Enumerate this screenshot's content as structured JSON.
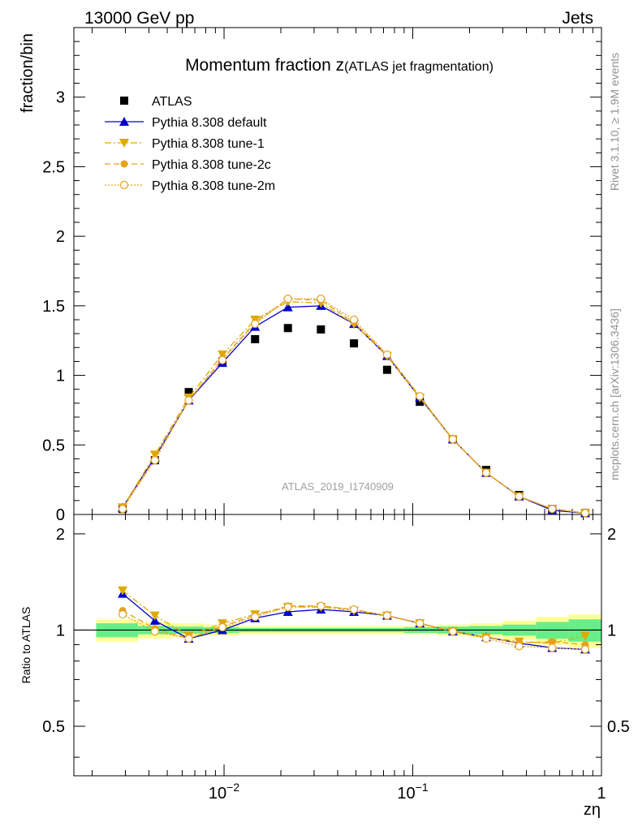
{
  "header": {
    "left": "13000 GeV pp",
    "right": "Jets"
  },
  "side_labels": {
    "rivet": "Rivet 3.1.10, ≥ 1.9M events",
    "mcplots": "mcplots.cern.ch [arXiv:1306.3436]"
  },
  "chart_data": {
    "type": "scatter",
    "title": "Momentum fraction z",
    "subtitle": "(ATLAS jet fragmentation)",
    "watermark": "ATLAS_2019_I1740909",
    "xscale": "log",
    "xlim": [
      0.0016,
      1
    ],
    "x_ticks": [
      {
        "value": 0.01,
        "base": "10",
        "exp": "−2"
      },
      {
        "value": 0.1,
        "base": "10",
        "exp": "−1"
      },
      {
        "value": 1,
        "base": "1",
        "exp": ""
      }
    ],
    "xlabel": "zη",
    "x": [
      0.0029,
      0.0043,
      0.0065,
      0.0098,
      0.0146,
      0.0218,
      0.0326,
      0.0488,
      0.0731,
      0.109,
      0.163,
      0.245,
      0.366,
      0.548,
      0.82
    ],
    "main": {
      "ylabel": "fraction/bin",
      "ylim": [
        0,
        3.5
      ],
      "yticks": [
        {
          "value": 0,
          "label": "0"
        },
        {
          "value": 0.5,
          "label": "0.5"
        },
        {
          "value": 1,
          "label": "1"
        },
        {
          "value": 1.5,
          "label": "1.5"
        },
        {
          "value": 2,
          "label": "2"
        },
        {
          "value": 2.5,
          "label": "2.5"
        },
        {
          "value": 3,
          "label": "3"
        }
      ],
      "legend_position": "top-left",
      "series": [
        {
          "name": "ATLAS",
          "style": "data",
          "color": "#000000",
          "values": [
            0.04,
            0.39,
            0.88,
            1.1,
            1.26,
            1.34,
            1.33,
            1.23,
            1.04,
            0.81,
            0.54,
            0.32,
            0.14,
            0.04,
            0.01
          ]
        },
        {
          "name": "Pythia 8.308 default",
          "style": "solid",
          "marker": "triangle-up",
          "color": "#0000cc",
          "values": [
            0.05,
            0.41,
            0.82,
            1.09,
            1.35,
            1.49,
            1.5,
            1.37,
            1.14,
            0.84,
            0.54,
            0.3,
            0.13,
            0.03,
            0.01
          ]
        },
        {
          "name": "Pythia 8.308 tune-1",
          "style": "dashdot",
          "marker": "triangle-down",
          "color": "#ddaa00",
          "values": [
            0.05,
            0.43,
            0.84,
            1.15,
            1.4,
            1.53,
            1.52,
            1.37,
            1.14,
            0.84,
            0.54,
            0.3,
            0.13,
            0.04,
            0.01
          ]
        },
        {
          "name": "Pythia 8.308 tune-2c",
          "style": "dashed",
          "marker": "circle",
          "color": "#e8a020",
          "values": [
            0.05,
            0.4,
            0.82,
            1.12,
            1.38,
            1.55,
            1.54,
            1.38,
            1.15,
            0.85,
            0.54,
            0.3,
            0.13,
            0.04,
            0.01
          ]
        },
        {
          "name": "Pythia 8.308 tune-2m",
          "style": "dotted",
          "marker": "circle-open",
          "color": "#e8a020",
          "values": [
            0.04,
            0.39,
            0.82,
            1.11,
            1.37,
            1.55,
            1.55,
            1.4,
            1.15,
            0.85,
            0.54,
            0.3,
            0.13,
            0.04,
            0.01
          ]
        }
      ]
    },
    "ratio": {
      "ylabel": "Ratio to ATLAS",
      "ylim": [
        0.35,
        2.3
      ],
      "yticks": [
        {
          "value": 0.5,
          "label": "0.5"
        },
        {
          "value": 1,
          "label": "1"
        },
        {
          "value": 2,
          "label": "2"
        }
      ],
      "band_edges": [
        0.0021,
        0.0035,
        0.0053,
        0.0078,
        0.012,
        0.0178,
        0.0268,
        0.0398,
        0.0598,
        0.0894,
        0.134,
        0.2,
        0.3,
        0.45,
        0.67,
        1.0
      ],
      "band_inner": [
        0.05,
        0.03,
        0.025,
        0.02,
        0.015,
        0.015,
        0.015,
        0.015,
        0.015,
        0.02,
        0.025,
        0.03,
        0.04,
        0.06,
        0.08
      ],
      "band_outer": [
        0.08,
        0.06,
        0.05,
        0.04,
        0.03,
        0.03,
        0.03,
        0.03,
        0.03,
        0.03,
        0.04,
        0.05,
        0.07,
        0.1,
        0.12
      ],
      "band_colors": {
        "inner": "#66ee88",
        "outer": "#ffff99"
      },
      "series": [
        {
          "name": "Pythia 8.308 default",
          "values": [
            1.3,
            1.07,
            0.94,
            1.0,
            1.09,
            1.14,
            1.16,
            1.14,
            1.11,
            1.05,
            0.99,
            0.95,
            0.91,
            0.88,
            0.87
          ]
        },
        {
          "name": "Pythia 8.308 tune-1",
          "values": [
            1.33,
            1.11,
            0.96,
            1.05,
            1.12,
            1.18,
            1.18,
            1.15,
            1.11,
            1.05,
            0.99,
            0.95,
            0.92,
            0.91,
            0.96
          ]
        },
        {
          "name": "Pythia 8.308 tune-2c",
          "values": [
            1.15,
            1.01,
            0.94,
            1.03,
            1.11,
            1.19,
            1.19,
            1.16,
            1.11,
            1.05,
            0.99,
            0.95,
            0.91,
            0.92,
            0.9
          ]
        },
        {
          "name": "Pythia 8.308 tune-2m",
          "values": [
            1.12,
            0.99,
            0.94,
            1.02,
            1.1,
            1.18,
            1.19,
            1.16,
            1.11,
            1.05,
            0.99,
            0.94,
            0.89,
            0.88,
            0.87
          ]
        }
      ]
    }
  }
}
